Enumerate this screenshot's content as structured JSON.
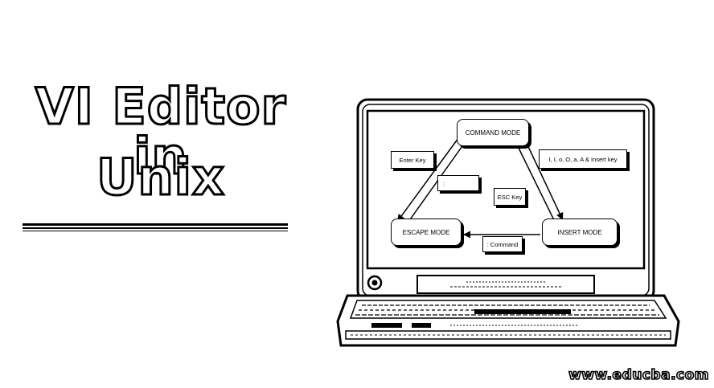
{
  "title_line1": "VI Editor in",
  "title_line2": "Unix",
  "diagram": {
    "modes": {
      "command": "COMMAND MODE",
      "escape": "ESCAPE MODE",
      "insert": "INSERT MODE"
    },
    "labels": {
      "enter_key": "Enter Key",
      "colon": ":",
      "insert_keys": "I, I, o, O, a, A & Insert key",
      "esc_key": "ESC Key",
      "command": ": Command"
    }
  },
  "watermark": "www.educba.com",
  "colors": {
    "ink": "#000000",
    "paper": "#ffffff"
  }
}
